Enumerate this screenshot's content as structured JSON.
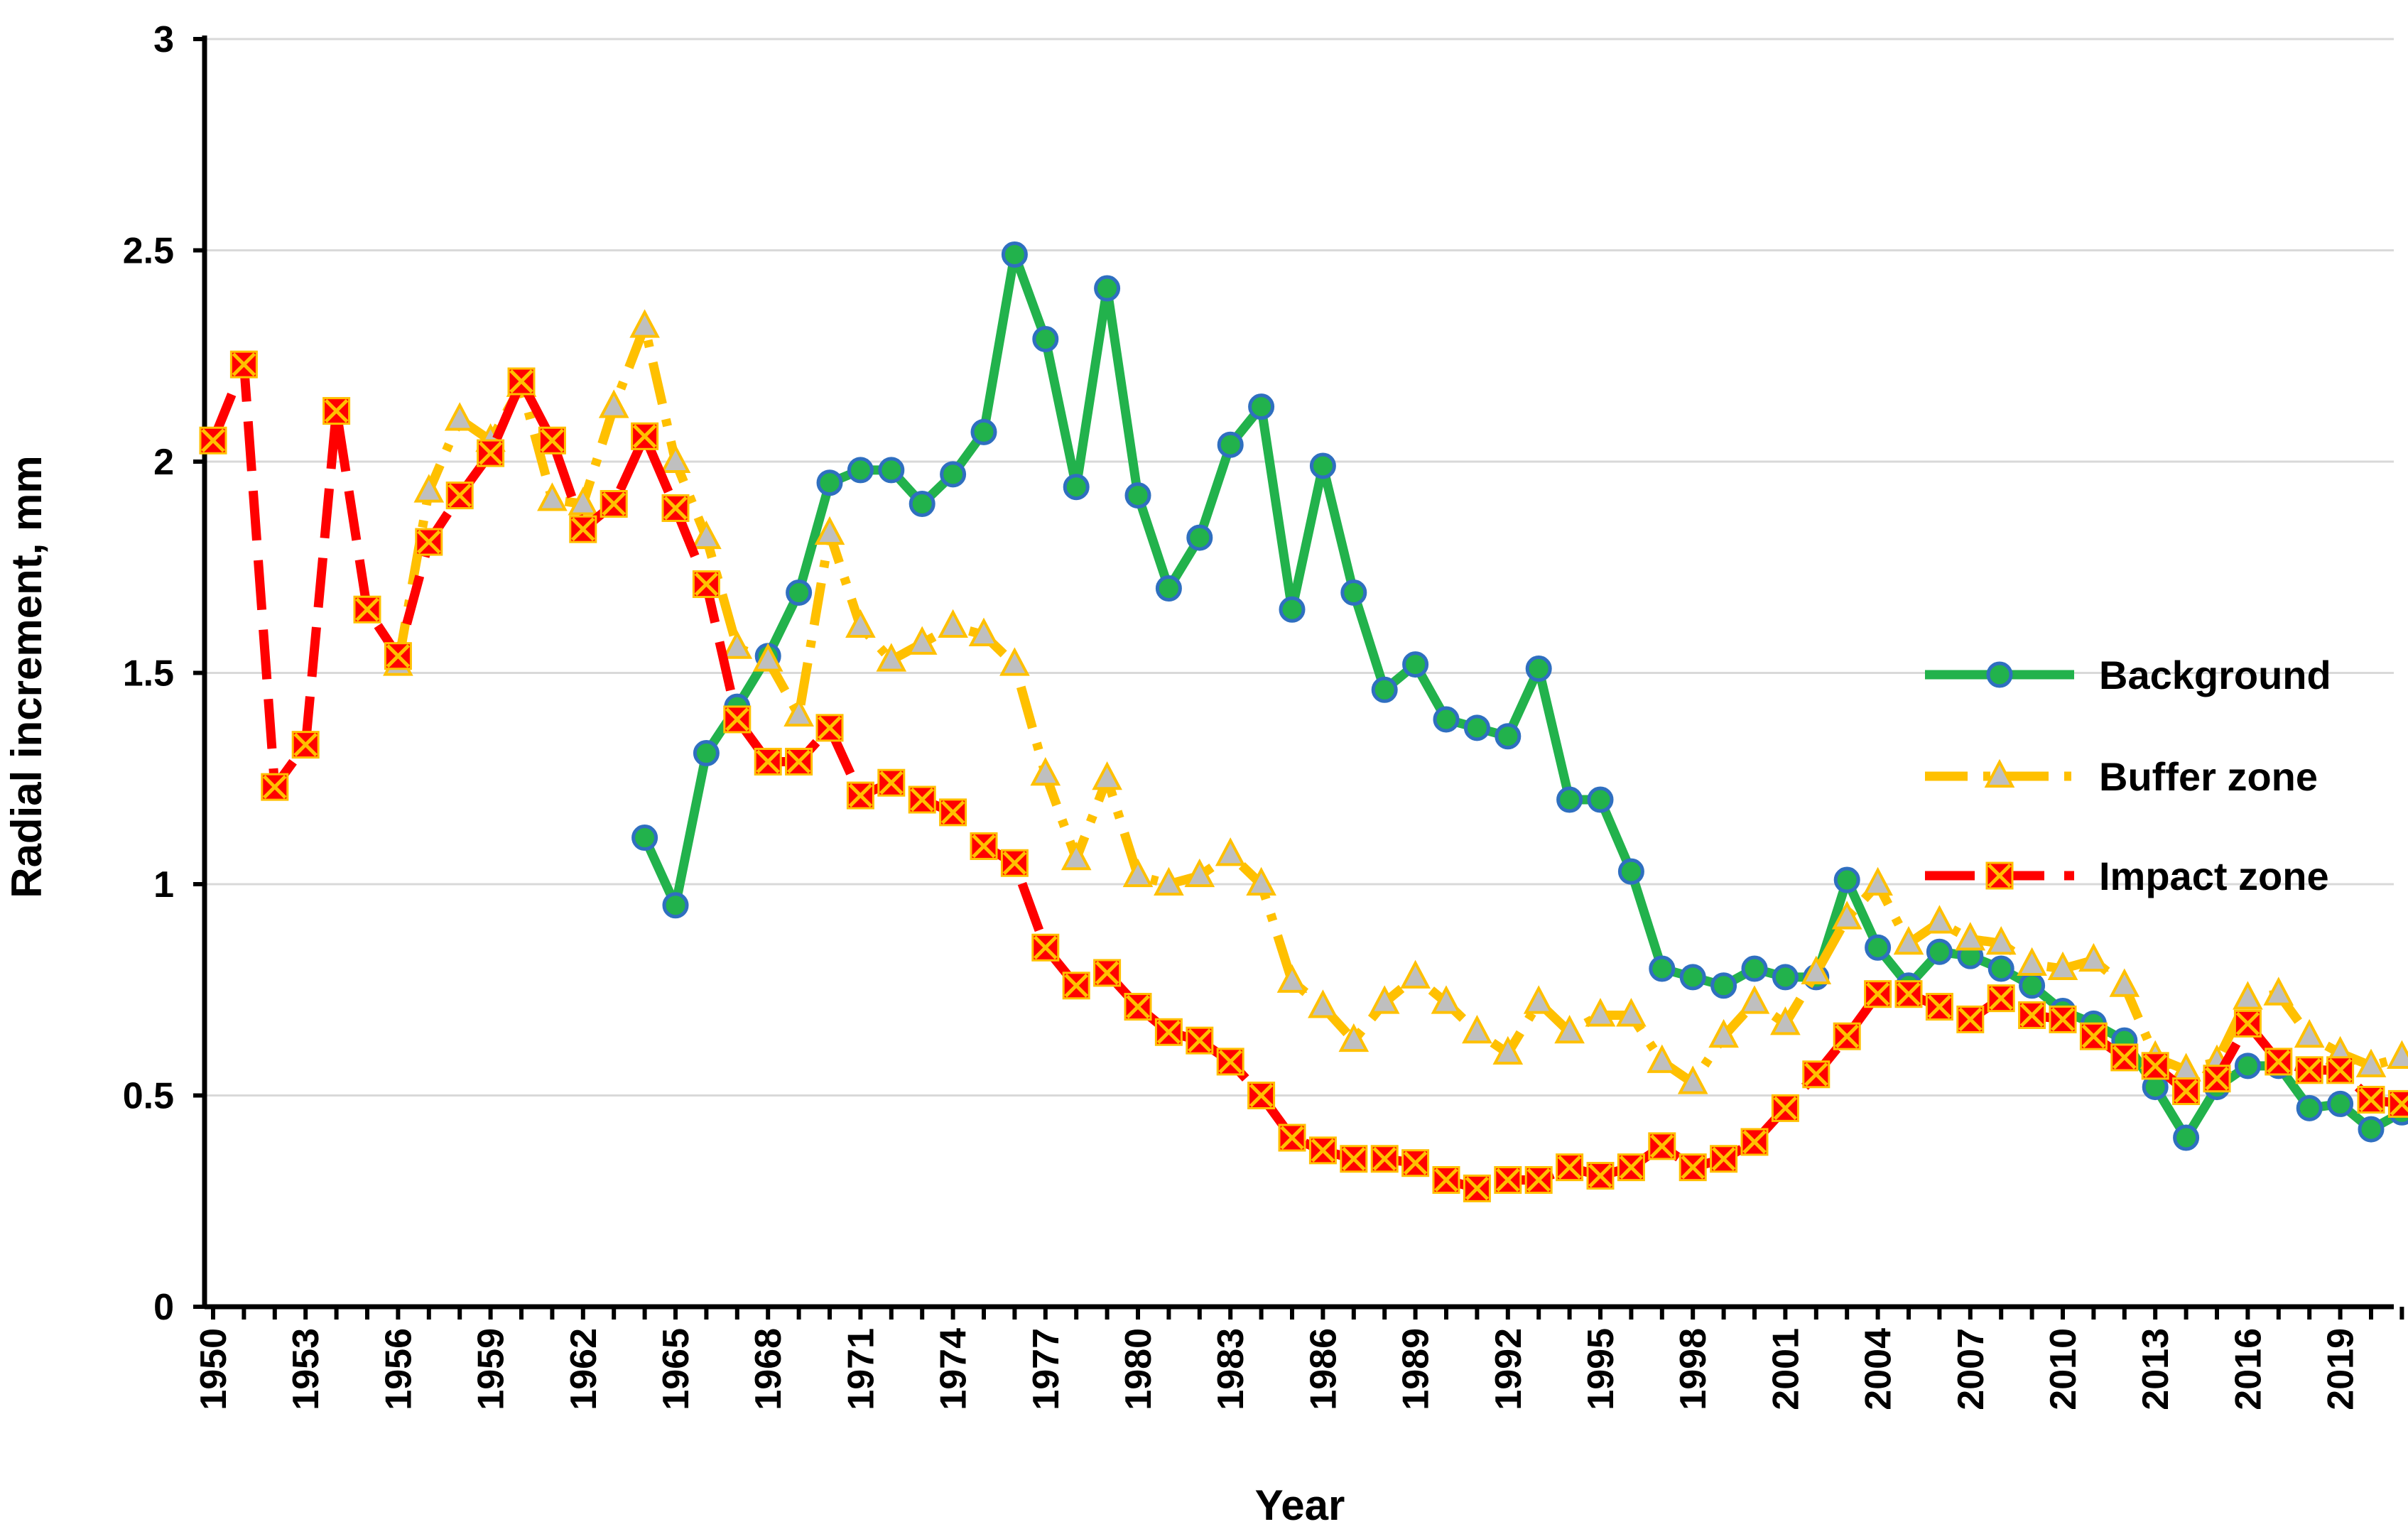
{
  "chart_data": {
    "type": "line",
    "title": "",
    "xlabel": "Year",
    "ylabel": "Radial increment, mm",
    "ylim": [
      0,
      3
    ],
    "yticks": [
      0,
      0.5,
      1,
      1.5,
      2,
      2.5,
      3
    ],
    "ytick_labels": [
      "0",
      "0.5",
      "1",
      "1.5",
      "2",
      "2.5",
      "3"
    ],
    "xlim": [
      1950,
      2021
    ],
    "xtick_labels": [
      "1950",
      "1953",
      "1956",
      "1959",
      "1962",
      "1965",
      "1968",
      "1971",
      "1974",
      "1977",
      "1980",
      "1983",
      "1986",
      "1989",
      "1992",
      "1995",
      "1998",
      "2001",
      "2004",
      "2007",
      "2010",
      "2013",
      "2016",
      "2019"
    ],
    "grid": "horizontal",
    "legend_position": "right",
    "series": [
      {
        "name": "Background",
        "color": "#22B24C",
        "marker": "circle",
        "marker_fill": "#22B24C",
        "marker_edge": "#2F6FC0",
        "line_style": "solid",
        "start_year": 1964,
        "values": [
          1.11,
          0.95,
          1.31,
          1.42,
          1.54,
          1.69,
          1.95,
          1.98,
          1.98,
          1.9,
          1.97,
          2.07,
          2.49,
          2.29,
          1.94,
          2.41,
          1.92,
          1.7,
          1.82,
          2.04,
          2.13,
          1.65,
          1.99,
          1.69,
          1.46,
          1.52,
          1.39,
          1.37,
          1.35,
          1.51,
          1.2,
          1.2,
          1.03,
          0.8,
          0.78,
          0.76,
          0.8,
          0.78,
          0.78,
          1.01,
          0.85,
          0.76,
          0.84,
          0.83,
          0.8,
          0.76,
          0.7,
          0.67,
          0.63,
          0.52,
          0.4,
          0.52,
          0.57,
          0.57,
          0.47,
          0.48,
          0.42,
          0.46
        ]
      },
      {
        "name": "Buffer zone",
        "color": "#FFC000",
        "marker": "triangle",
        "marker_fill": "#BFBFBF",
        "marker_edge": "#FFC000",
        "line_style": "dashdot",
        "start_year": 1956,
        "values": [
          1.52,
          1.93,
          2.1,
          2.05,
          2.18,
          1.91,
          1.9,
          2.13,
          2.32,
          2.0,
          1.82,
          1.56,
          1.53,
          1.4,
          1.83,
          1.61,
          1.53,
          1.57,
          1.61,
          1.59,
          1.52,
          1.26,
          1.06,
          1.25,
          1.02,
          1.0,
          1.02,
          1.07,
          1.0,
          0.77,
          0.71,
          0.63,
          0.72,
          0.78,
          0.72,
          0.65,
          0.6,
          0.72,
          0.65,
          0.69,
          0.69,
          0.58,
          0.53,
          0.64,
          0.72,
          0.67,
          0.79,
          0.92,
          1.0,
          0.86,
          0.91,
          0.87,
          0.86,
          0.81,
          0.8,
          0.82,
          0.76,
          0.59,
          0.56,
          0.58,
          0.73,
          0.74,
          0.64,
          0.6,
          0.57,
          0.59
        ]
      },
      {
        "name": "Impact zone",
        "color": "#FF0000",
        "marker": "x-square",
        "marker_fill": "#FF0000",
        "marker_edge": "#FFC000",
        "line_style": "dashed",
        "start_year": 1950,
        "values": [
          2.05,
          2.23,
          1.23,
          1.33,
          2.12,
          1.65,
          1.54,
          1.81,
          1.92,
          2.02,
          2.19,
          2.05,
          1.84,
          1.9,
          2.06,
          1.89,
          1.71,
          1.39,
          1.29,
          1.29,
          1.37,
          1.21,
          1.24,
          1.2,
          1.17,
          1.09,
          1.05,
          0.85,
          0.76,
          0.79,
          0.71,
          0.65,
          0.63,
          0.58,
          0.5,
          0.4,
          0.37,
          0.35,
          0.35,
          0.34,
          0.3,
          0.28,
          0.3,
          0.3,
          0.33,
          0.31,
          0.33,
          0.38,
          0.33,
          0.35,
          0.39,
          0.47,
          0.55,
          0.64,
          0.74,
          0.74,
          0.71,
          0.68,
          0.73,
          0.69,
          0.68,
          0.64,
          0.59,
          0.57,
          0.51,
          0.54,
          0.67,
          0.58,
          0.56,
          0.56,
          0.49,
          0.48
        ]
      }
    ]
  }
}
